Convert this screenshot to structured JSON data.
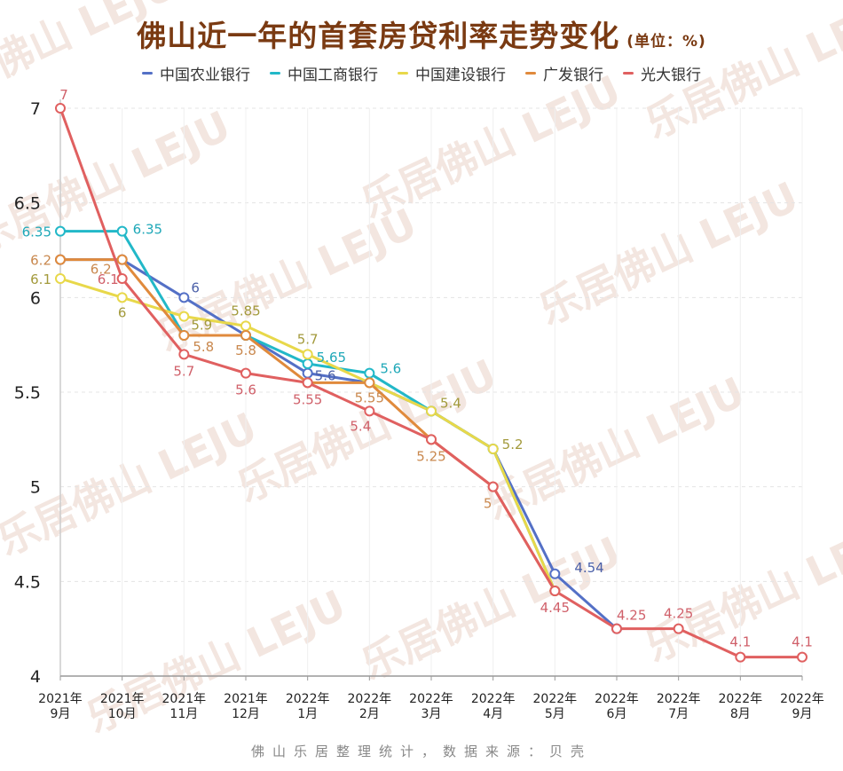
{
  "title": "佛山近一年的首套房贷利率走势变化",
  "unit": "(单位：%)",
  "footer": "佛山乐居整理统计，数据来源：贝壳",
  "watermark": "乐居佛山 LEJU",
  "chart_data": {
    "type": "line",
    "categories": [
      "2021年\n9月",
      "2021年\n10月",
      "2021年\n11月",
      "2021年\n12月",
      "2022年\n1月",
      "2022年\n2月",
      "2022年\n3月",
      "2022年\n4月",
      "2022年\n5月",
      "2022年\n6月",
      "2022年\n7月",
      "2022年\n8月",
      "2022年\n9月"
    ],
    "ylim": [
      4,
      7
    ],
    "yticks": [
      4,
      4.5,
      5,
      5.5,
      6,
      6.5,
      7
    ],
    "grid": true,
    "legend_position": "top",
    "series": [
      {
        "name": "中国农业银行",
        "color": "#5470c6",
        "label_color": "#4a5fa8",
        "values": [
          6.2,
          6.2,
          6,
          5.8,
          5.6,
          5.55,
          5.4,
          5.2,
          4.54,
          4.25,
          null,
          null,
          null
        ],
        "labeled": [
          2,
          4,
          8
        ]
      },
      {
        "name": "中国工商银行",
        "color": "#22b8c8",
        "label_color": "#1fa8b8",
        "values": [
          6.35,
          6.35,
          5.8,
          5.8,
          5.65,
          5.6,
          5.4,
          5.2,
          4.45,
          null,
          null,
          null,
          null
        ],
        "labeled": [
          0,
          1,
          4,
          5
        ]
      },
      {
        "name": "中国建设银行",
        "color": "#e8d84a",
        "label_color": "#a39a3c",
        "values": [
          6.1,
          6,
          5.9,
          5.85,
          5.7,
          5.55,
          5.4,
          5.2,
          4.45,
          null,
          null,
          null,
          null
        ],
        "labeled": [
          0,
          1,
          2,
          3,
          4,
          6,
          7
        ]
      },
      {
        "name": "广发银行",
        "color": "#e08a3c",
        "label_color": "#c9884e",
        "values": [
          6.2,
          6.2,
          5.8,
          5.8,
          5.55,
          5.55,
          5.25,
          5,
          4.45,
          null,
          null,
          null,
          null
        ],
        "labeled": [
          0,
          1,
          2,
          3,
          5,
          6,
          7
        ]
      },
      {
        "name": "光大银行",
        "color": "#e06060",
        "label_color": "#d0606a",
        "values": [
          7,
          6.1,
          5.7,
          5.6,
          5.55,
          5.4,
          5.25,
          5,
          4.45,
          4.25,
          4.25,
          4.1,
          4.1
        ],
        "labeled": [
          0,
          1,
          2,
          3,
          4,
          5,
          8,
          9,
          10,
          11,
          12
        ]
      }
    ]
  }
}
